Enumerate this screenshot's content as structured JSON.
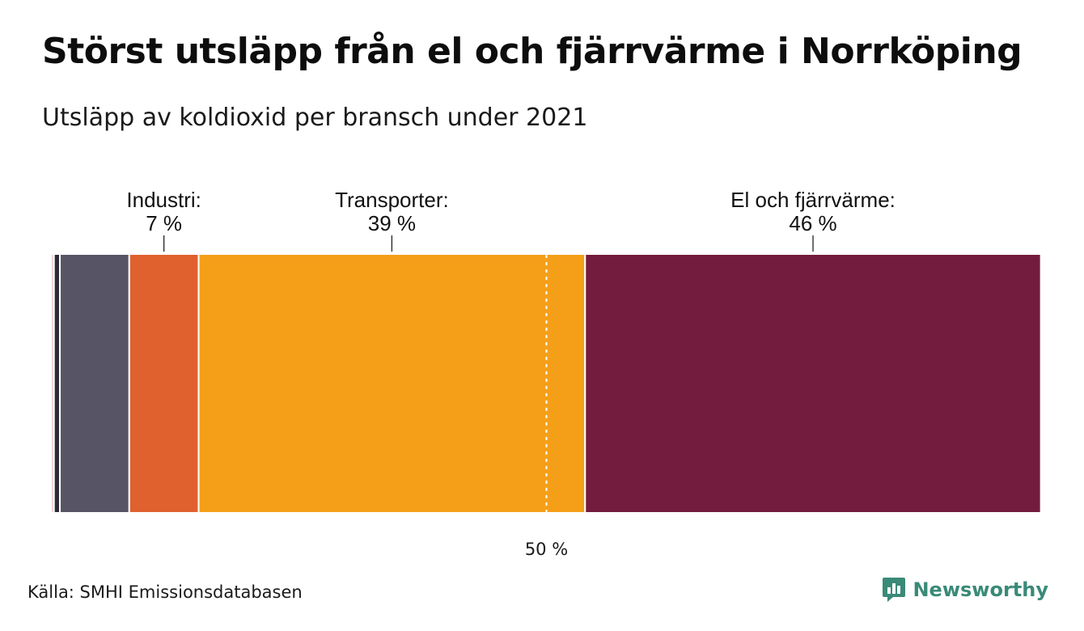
{
  "title": "Störst utsläpp från el och fjärrvärme i Norrköping",
  "subtitle": "Utsläpp av koldioxid per bransch under 2021",
  "source": "Källa: SMHI Emissionsdatabasen",
  "brand": {
    "name": "Newsworthy",
    "icon": "newsworthy-logo-icon",
    "color": "#3a8a78"
  },
  "chart_data": {
    "type": "bar",
    "orientation": "horizontal-stacked",
    "title": "Störst utsläpp från el och fjärrvärme i Norrköping",
    "subtitle": "Utsläpp av koldioxid per bransch under 2021",
    "unit": "%",
    "total": 100,
    "segments": [
      {
        "name": "",
        "value": 0.3,
        "color": "#f2c9cf",
        "labeled": false
      },
      {
        "name": "",
        "value": 0.6,
        "color": "#2b2b3a",
        "labeled": false
      },
      {
        "name": "",
        "value": 7.0,
        "color": "#575565",
        "labeled": false
      },
      {
        "name": "Industri:",
        "value": 7,
        "value_label": "7 %",
        "color": "#e0612e",
        "labeled": true
      },
      {
        "name": "Transporter:",
        "value": 39,
        "value_label": "39 %",
        "color": "#f59f19",
        "labeled": true
      },
      {
        "name": "El och fjärrvärme:",
        "value": 46,
        "value_label": "46 %",
        "color": "#731c3d",
        "labeled": true
      },
      {
        "name": "",
        "value": 0.1,
        "color": "#f2c9cf",
        "labeled": false
      }
    ],
    "reference_line": {
      "value": 50,
      "label": "50 %",
      "style": "dotted"
    }
  }
}
